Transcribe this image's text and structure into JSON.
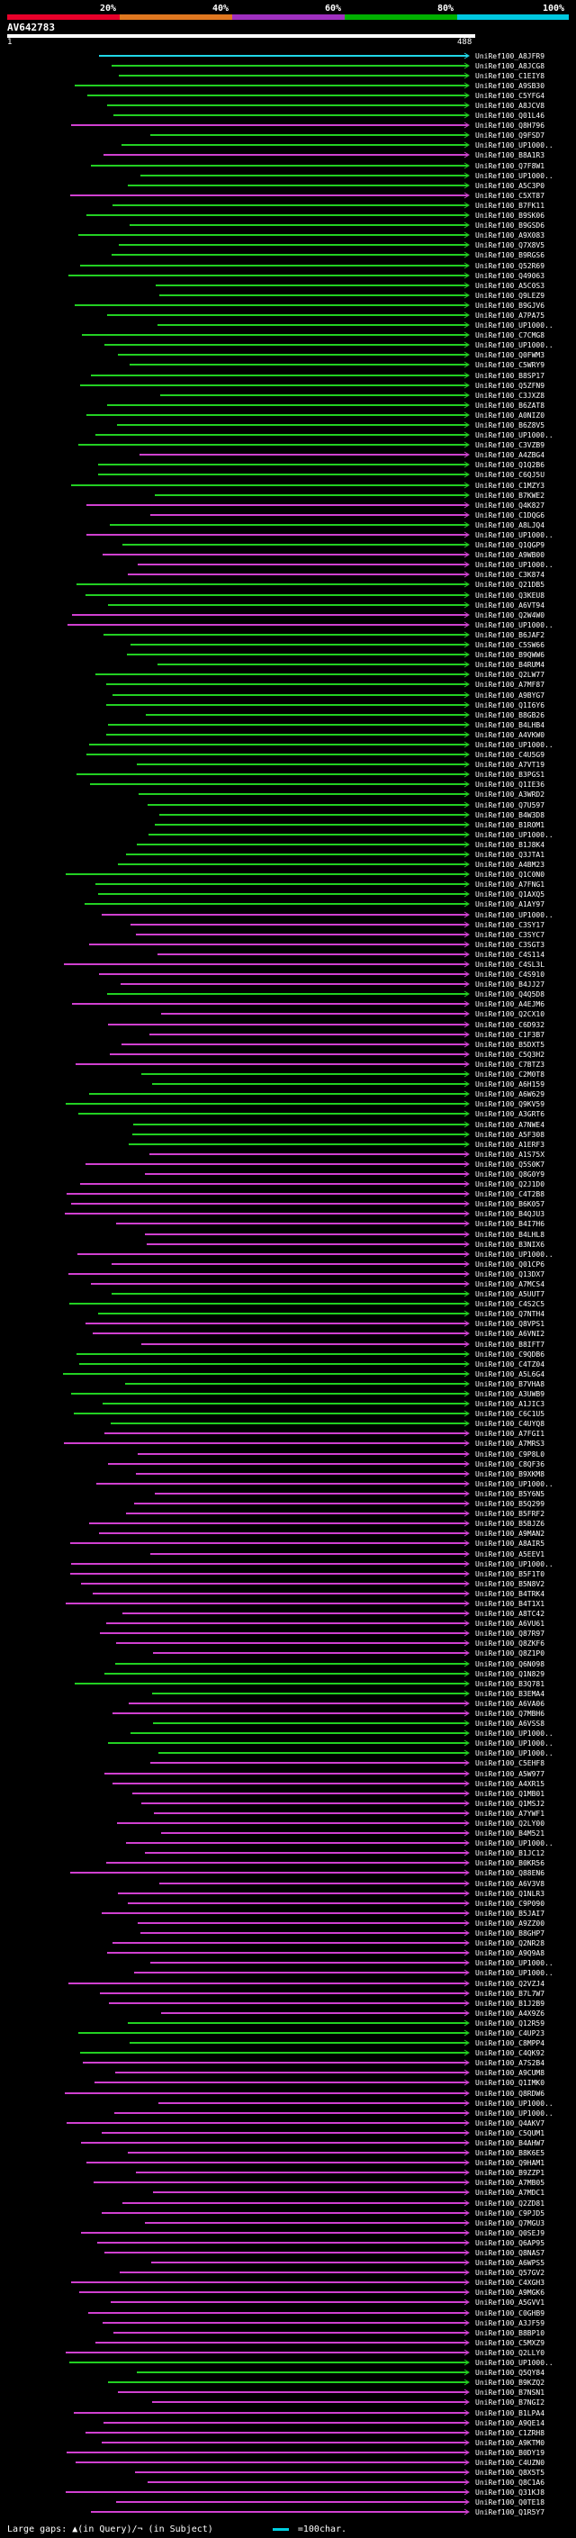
{
  "header": {
    "scale_labels": [
      "20%",
      "40%",
      "60%",
      "80%",
      "100%"
    ],
    "scale_colors": [
      "#e8002a",
      "#e07820",
      "#a030c0",
      "#00b000",
      "#00c8e0"
    ],
    "query_id": "AV642783",
    "start": "1",
    "end": "488"
  },
  "footer": {
    "large_gaps_label": "Large gaps:",
    "legend_text": "▲(in Query)/¬ (in Subject)",
    "scale_text": "=100char."
  },
  "hits": [
    {
      "id": "UniRef100_A8JFR9",
      "color": "cyan"
    },
    {
      "id": "UniRef100_A8JCG8",
      "color": "green"
    },
    {
      "id": "UniRef100_C1EIY8",
      "color": "green"
    },
    {
      "id": "UniRef100_A9SB30",
      "color": "green"
    },
    {
      "id": "UniRef100_C5YFG4",
      "color": "green"
    },
    {
      "id": "UniRef100_A8JCV8",
      "color": "green"
    },
    {
      "id": "UniRef100_Q01L46",
      "color": "green"
    },
    {
      "id": "UniRef100_Q8H796",
      "color": "magenta"
    },
    {
      "id": "UniRef100_Q9FSD7",
      "color": "green"
    },
    {
      "id": "UniRef100_UP1000..",
      "color": "green"
    },
    {
      "id": "UniRef100_B8A1R3",
      "color": "magenta"
    },
    {
      "id": "UniRef100_Q7F8W1",
      "color": "green"
    },
    {
      "id": "UniRef100_UP1000..",
      "color": "green"
    },
    {
      "id": "UniRef100_A5C3P0",
      "color": "green"
    },
    {
      "id": "UniRef100_C5XT87",
      "color": "magenta"
    },
    {
      "id": "UniRef100_B7FK11",
      "color": "green"
    },
    {
      "id": "UniRef100_B9SK06",
      "color": "green"
    },
    {
      "id": "UniRef100_B9GSD6",
      "color": "green"
    },
    {
      "id": "UniRef100_A9X083",
      "color": "green"
    },
    {
      "id": "UniRef100_Q7X8V5",
      "color": "green"
    },
    {
      "id": "UniRef100_B9RGS6",
      "color": "green"
    },
    {
      "id": "UniRef100_Q52R69",
      "color": "green"
    },
    {
      "id": "UniRef100_Q49063",
      "color": "green"
    },
    {
      "id": "UniRef100_A5C0S3",
      "color": "green"
    },
    {
      "id": "UniRef100_Q9LEZ9",
      "color": "green"
    },
    {
      "id": "UniRef100_B9GJV6",
      "color": "green"
    },
    {
      "id": "UniRef100_A7PA75",
      "color": "green"
    },
    {
      "id": "UniRef100_UP1000..",
      "color": "green"
    },
    {
      "id": "UniRef100_C7CMG8",
      "color": "green"
    },
    {
      "id": "UniRef100_UP1000..",
      "color": "green"
    },
    {
      "id": "UniRef100_Q0FWM3",
      "color": "green"
    },
    {
      "id": "UniRef100_C5WRY9",
      "color": "green"
    },
    {
      "id": "UniRef100_B8SP17",
      "color": "green"
    },
    {
      "id": "UniRef100_Q5ZFN9",
      "color": "green"
    },
    {
      "id": "UniRef100_C3JXZ8",
      "color": "green"
    },
    {
      "id": "UniRef100_B6ZAT8",
      "color": "green"
    },
    {
      "id": "UniRef100_A0NIZ0",
      "color": "green"
    },
    {
      "id": "UniRef100_B6Z8V5",
      "color": "green"
    },
    {
      "id": "UniRef100_UP1000..",
      "color": "green"
    },
    {
      "id": "UniRef100_C3VZB9",
      "color": "green"
    },
    {
      "id": "UniRef100_A4ZBG4",
      "color": "magenta"
    },
    {
      "id": "UniRef100_Q1Q2B6",
      "color": "green"
    },
    {
      "id": "UniRef100_C6QJ5U",
      "color": "green"
    },
    {
      "id": "UniRef100_C1MZY3",
      "color": "green"
    },
    {
      "id": "UniRef100_B7KWE2",
      "color": "green"
    },
    {
      "id": "UniRef100_Q4K827",
      "color": "magenta"
    },
    {
      "id": "UniRef100_C1DQG6",
      "color": "magenta"
    },
    {
      "id": "UniRef100_A8LJQ4",
      "color": "green"
    },
    {
      "id": "UniRef100_UP1000..",
      "color": "magenta"
    },
    {
      "id": "UniRef100_Q1QGP9",
      "color": "green"
    },
    {
      "id": "UniRef100_A9WB00",
      "color": "magenta"
    },
    {
      "id": "UniRef100_UP1000..",
      "color": "magenta"
    },
    {
      "id": "UniRef100_C3K874",
      "color": "magenta"
    },
    {
      "id": "UniRef100_Q21DB5",
      "color": "green"
    },
    {
      "id": "UniRef100_Q3KEU8",
      "color": "green"
    },
    {
      "id": "UniRef100_A6VT94",
      "color": "green"
    },
    {
      "id": "UniRef100_Q2W4W0",
      "color": "magenta"
    },
    {
      "id": "UniRef100_UP1000..",
      "color": "magenta"
    },
    {
      "id": "UniRef100_B6JAF2",
      "color": "green"
    },
    {
      "id": "UniRef100_C5SW66",
      "color": "green"
    },
    {
      "id": "UniRef100_B9QWW6",
      "color": "green"
    },
    {
      "id": "UniRef100_B4RUM4",
      "color": "green"
    },
    {
      "id": "UniRef100_Q2LW77",
      "color": "green"
    },
    {
      "id": "UniRef100_A7MF87",
      "color": "green"
    },
    {
      "id": "UniRef100_A9BYG7",
      "color": "green"
    },
    {
      "id": "UniRef100_Q1I6Y6",
      "color": "green"
    },
    {
      "id": "UniRef100_B8GB26",
      "color": "green"
    },
    {
      "id": "UniRef100_B4LHB4",
      "color": "green"
    },
    {
      "id": "UniRef100_A4VKW0",
      "color": "green"
    },
    {
      "id": "UniRef100_UP1000..",
      "color": "green"
    },
    {
      "id": "UniRef100_C4U5G9",
      "color": "green"
    },
    {
      "id": "UniRef100_A7VT19",
      "color": "green"
    },
    {
      "id": "UniRef100_B3PGS1",
      "color": "green"
    },
    {
      "id": "UniRef100_Q1IE36",
      "color": "green"
    },
    {
      "id": "UniRef100_A3WRD2",
      "color": "green"
    },
    {
      "id": "UniRef100_Q7U597",
      "color": "green"
    },
    {
      "id": "UniRef100_B4W3D8",
      "color": "green"
    },
    {
      "id": "UniRef100_B1ROM1",
      "color": "green"
    },
    {
      "id": "UniRef100_UP1000..",
      "color": "green"
    },
    {
      "id": "UniRef100_B1J8K4",
      "color": "green"
    },
    {
      "id": "UniRef100_Q3JTA1",
      "color": "green"
    },
    {
      "id": "UniRef100_A4BM23",
      "color": "green"
    },
    {
      "id": "UniRef100_Q1C0N0",
      "color": "green"
    },
    {
      "id": "UniRef100_A7FNG1",
      "color": "green"
    },
    {
      "id": "UniRef100_Q1AXQ5",
      "color": "green"
    },
    {
      "id": "UniRef100_A1AY97",
      "color": "green"
    },
    {
      "id": "UniRef100_UP1000..",
      "color": "magenta"
    },
    {
      "id": "UniRef100_C3SY17",
      "color": "magenta"
    },
    {
      "id": "UniRef100_C3SYC7",
      "color": "magenta"
    },
    {
      "id": "UniRef100_C3SGT3",
      "color": "magenta"
    },
    {
      "id": "UniRef100_C4S114",
      "color": "magenta"
    },
    {
      "id": "UniRef100_C4SL3L",
      "color": "magenta"
    },
    {
      "id": "UniRef100_C4S910",
      "color": "magenta"
    },
    {
      "id": "UniRef100_B4JJ27",
      "color": "magenta"
    },
    {
      "id": "UniRef100_Q4Q5D8",
      "color": "green"
    },
    {
      "id": "UniRef100_A4EJM6",
      "color": "magenta"
    },
    {
      "id": "UniRef100_Q2CX10",
      "color": "magenta"
    },
    {
      "id": "UniRef100_C6D932",
      "color": "magenta"
    },
    {
      "id": "UniRef100_C1F3B7",
      "color": "magenta"
    },
    {
      "id": "UniRef100_B5DXT5",
      "color": "magenta"
    },
    {
      "id": "UniRef100_C5Q3H2",
      "color": "magenta"
    },
    {
      "id": "UniRef100_C7BTZ3",
      "color": "magenta"
    },
    {
      "id": "UniRef100_C2M0T8",
      "color": "green"
    },
    {
      "id": "UniRef100_A6H159",
      "color": "green"
    },
    {
      "id": "UniRef100_A6W629",
      "color": "green"
    },
    {
      "id": "UniRef100_Q9KV59",
      "color": "green"
    },
    {
      "id": "UniRef100_A3GRT6",
      "color": "green"
    },
    {
      "id": "UniRef100_A7NWE4",
      "color": "green"
    },
    {
      "id": "UniRef100_A5F308",
      "color": "green"
    },
    {
      "id": "UniRef100_A1ERF3",
      "color": "green"
    },
    {
      "id": "UniRef100_A1S75X",
      "color": "magenta"
    },
    {
      "id": "UniRef100_Q5S0K7",
      "color": "magenta"
    },
    {
      "id": "UniRef100_Q8G0Y9",
      "color": "magenta"
    },
    {
      "id": "UniRef100_Q2J1D0",
      "color": "magenta"
    },
    {
      "id": "UniRef100_C4T2B8",
      "color": "magenta"
    },
    {
      "id": "UniRef100_B6K057",
      "color": "magenta"
    },
    {
      "id": "UniRef100_B4QJU3",
      "color": "magenta"
    },
    {
      "id": "UniRef100_B4I7H6",
      "color": "magenta"
    },
    {
      "id": "UniRef100_B4LHL8",
      "color": "magenta"
    },
    {
      "id": "UniRef100_B3NIX6",
      "color": "magenta"
    },
    {
      "id": "UniRef100_UP1000..",
      "color": "magenta"
    },
    {
      "id": "UniRef100_Q01CP6",
      "color": "magenta"
    },
    {
      "id": "UniRef100_Q13DX7",
      "color": "magenta"
    },
    {
      "id": "UniRef100_A7MCS4",
      "color": "magenta"
    },
    {
      "id": "UniRef100_A5UUT7",
      "color": "green"
    },
    {
      "id": "UniRef100_C4S2C5",
      "color": "green"
    },
    {
      "id": "UniRef100_Q7NTH4",
      "color": "green"
    },
    {
      "id": "UniRef100_Q8VPS1",
      "color": "magenta"
    },
    {
      "id": "UniRef100_A6VNI2",
      "color": "magenta"
    },
    {
      "id": "UniRef100_B8IFT7",
      "color": "magenta"
    },
    {
      "id": "UniRef100_C9QDB6",
      "color": "green"
    },
    {
      "id": "UniRef100_C4TZ04",
      "color": "green"
    },
    {
      "id": "UniRef100_A5L6G4",
      "color": "green"
    },
    {
      "id": "UniRef100_B7VHA8",
      "color": "green"
    },
    {
      "id": "UniRef100_A3UWB9",
      "color": "green"
    },
    {
      "id": "UniRef100_A1JIC3",
      "color": "green"
    },
    {
      "id": "UniRef100_C6C1U5",
      "color": "green"
    },
    {
      "id": "UniRef100_C4UYQ8",
      "color": "green"
    },
    {
      "id": "UniRef100_A7FGI1",
      "color": "magenta"
    },
    {
      "id": "UniRef100_A7MRS3",
      "color": "magenta"
    },
    {
      "id": "UniRef100_C9P8L0",
      "color": "magenta"
    },
    {
      "id": "UniRef100_C8QF36",
      "color": "magenta"
    },
    {
      "id": "UniRef100_B9XKM8",
      "color": "magenta"
    },
    {
      "id": "UniRef100_UP1000..",
      "color": "magenta"
    },
    {
      "id": "UniRef100_B5Y6N5",
      "color": "magenta"
    },
    {
      "id": "UniRef100_B5Q299",
      "color": "magenta"
    },
    {
      "id": "UniRef100_B5FRF2",
      "color": "magenta"
    },
    {
      "id": "UniRef100_B5BJZ6",
      "color": "magenta"
    },
    {
      "id": "UniRef100_A9MAN2",
      "color": "magenta"
    },
    {
      "id": "UniRef100_A8AIR5",
      "color": "magenta"
    },
    {
      "id": "UniRef100_A5EEV1",
      "color": "magenta"
    },
    {
      "id": "UniRef100_UP1000..",
      "color": "magenta"
    },
    {
      "id": "UniRef100_B5F1T0",
      "color": "magenta"
    },
    {
      "id": "UniRef100_B5N8V2",
      "color": "magenta"
    },
    {
      "id": "UniRef100_B4TRK4",
      "color": "magenta"
    },
    {
      "id": "UniRef100_B4T1X1",
      "color": "magenta"
    },
    {
      "id": "UniRef100_A8TC42",
      "color": "magenta"
    },
    {
      "id": "UniRef100_A6VU61",
      "color": "magenta"
    },
    {
      "id": "UniRef100_Q87R97",
      "color": "magenta"
    },
    {
      "id": "UniRef100_Q8ZKF6",
      "color": "magenta"
    },
    {
      "id": "UniRef100_Q8Z1P0",
      "color": "magenta"
    },
    {
      "id": "UniRef100_Q6N098",
      "color": "green"
    },
    {
      "id": "UniRef100_Q1N829",
      "color": "green"
    },
    {
      "id": "UniRef100_B3Q781",
      "color": "green"
    },
    {
      "id": "UniRef100_B3EMA4",
      "color": "green"
    },
    {
      "id": "UniRef100_A6VA06",
      "color": "magenta"
    },
    {
      "id": "UniRef100_Q7MBH6",
      "color": "magenta"
    },
    {
      "id": "UniRef100_A6VSS8",
      "color": "green"
    },
    {
      "id": "UniRef100_UP1000..",
      "color": "green"
    },
    {
      "id": "UniRef100_UP1000..",
      "color": "green"
    },
    {
      "id": "UniRef100_UP1000..",
      "color": "green"
    },
    {
      "id": "UniRef100_C5EHF8",
      "color": "magenta"
    },
    {
      "id": "UniRef100_A5W977",
      "color": "magenta"
    },
    {
      "id": "UniRef100_A4XR15",
      "color": "magenta"
    },
    {
      "id": "UniRef100_Q1MB01",
      "color": "magenta"
    },
    {
      "id": "UniRef100_Q1MSJ2",
      "color": "magenta"
    },
    {
      "id": "UniRef100_A7YWF1",
      "color": "magenta"
    },
    {
      "id": "UniRef100_Q2LY00",
      "color": "magenta"
    },
    {
      "id": "UniRef100_B4M521",
      "color": "magenta"
    },
    {
      "id": "UniRef100_UP1000..",
      "color": "magenta"
    },
    {
      "id": "UniRef100_B1JC12",
      "color": "magenta"
    },
    {
      "id": "UniRef100_B0KR56",
      "color": "magenta"
    },
    {
      "id": "UniRef100_Q88EN6",
      "color": "magenta"
    },
    {
      "id": "UniRef100_A6V3V8",
      "color": "magenta"
    },
    {
      "id": "UniRef100_Q1NLR3",
      "color": "magenta"
    },
    {
      "id": "UniRef100_C9P090",
      "color": "magenta"
    },
    {
      "id": "UniRef100_B5JAI7",
      "color": "magenta"
    },
    {
      "id": "UniRef100_A9ZZ00",
      "color": "magenta"
    },
    {
      "id": "UniRef100_B8GHP7",
      "color": "magenta"
    },
    {
      "id": "UniRef100_Q2NR28",
      "color": "magenta"
    },
    {
      "id": "UniRef100_A9Q9A8",
      "color": "magenta"
    },
    {
      "id": "UniRef100_UP1000..",
      "color": "magenta"
    },
    {
      "id": "UniRef100_UP1000..",
      "color": "magenta"
    },
    {
      "id": "UniRef100_Q2VZJ4",
      "color": "magenta"
    },
    {
      "id": "UniRef100_B7L7W7",
      "color": "magenta"
    },
    {
      "id": "UniRef100_B1J2B9",
      "color": "magenta"
    },
    {
      "id": "UniRef100_A4X9Z6",
      "color": "magenta"
    },
    {
      "id": "UniRef100_Q12R59",
      "color": "green"
    },
    {
      "id": "UniRef100_C4UP23",
      "color": "green"
    },
    {
      "id": "UniRef100_C8MPP4",
      "color": "green"
    },
    {
      "id": "UniRef100_C4QK92",
      "color": "green"
    },
    {
      "id": "UniRef100_A7S2B4",
      "color": "magenta"
    },
    {
      "id": "UniRef100_A9CUM8",
      "color": "magenta"
    },
    {
      "id": "UniRef100_Q1IMK0",
      "color": "magenta"
    },
    {
      "id": "UniRef100_Q8RDW6",
      "color": "magenta"
    },
    {
      "id": "UniRef100_UP1000..",
      "color": "magenta"
    },
    {
      "id": "UniRef100_UP1000..",
      "color": "magenta"
    },
    {
      "id": "UniRef100_Q4AKV7",
      "color": "magenta"
    },
    {
      "id": "UniRef100_C5QUM1",
      "color": "magenta"
    },
    {
      "id": "UniRef100_B4AHW7",
      "color": "magenta"
    },
    {
      "id": "UniRef100_B8K6E5",
      "color": "magenta"
    },
    {
      "id": "UniRef100_Q9HAM1",
      "color": "magenta"
    },
    {
      "id": "UniRef100_B9ZZP1",
      "color": "magenta"
    },
    {
      "id": "UniRef100_A7MB05",
      "color": "magenta"
    },
    {
      "id": "UniRef100_A7MDC1",
      "color": "magenta"
    },
    {
      "id": "UniRef100_Q2ZD81",
      "color": "magenta"
    },
    {
      "id": "UniRef100_C9PJD5",
      "color": "magenta"
    },
    {
      "id": "UniRef100_Q7MGU3",
      "color": "magenta"
    },
    {
      "id": "UniRef100_Q0SEJ9",
      "color": "magenta"
    },
    {
      "id": "UniRef100_Q6AP95",
      "color": "magenta"
    },
    {
      "id": "UniRef100_Q8NAS7",
      "color": "magenta"
    },
    {
      "id": "UniRef100_A6WPS5",
      "color": "magenta"
    },
    {
      "id": "UniRef100_Q57GV2",
      "color": "magenta"
    },
    {
      "id": "UniRef100_C4XGH3",
      "color": "magenta"
    },
    {
      "id": "UniRef100_A9MGK6",
      "color": "magenta"
    },
    {
      "id": "UniRef100_A5GVV1",
      "color": "magenta"
    },
    {
      "id": "UniRef100_C0GHB9",
      "color": "magenta"
    },
    {
      "id": "UniRef100_A3JF59",
      "color": "magenta"
    },
    {
      "id": "UniRef100_B8BP10",
      "color": "magenta"
    },
    {
      "id": "UniRef100_C5MXZ9",
      "color": "magenta"
    },
    {
      "id": "UniRef100_Q2LLY0",
      "color": "magenta"
    },
    {
      "id": "UniRef100_UP1000..",
      "color": "green"
    },
    {
      "id": "UniRef100_Q5QY84",
      "color": "green"
    },
    {
      "id": "UniRef100_B9KZQ2",
      "color": "green"
    },
    {
      "id": "UniRef100_B7NSN1",
      "color": "magenta"
    },
    {
      "id": "UniRef100_B7NGI2",
      "color": "magenta"
    },
    {
      "id": "UniRef100_B1LPA4",
      "color": "magenta"
    },
    {
      "id": "UniRef100_A9QE14",
      "color": "magenta"
    },
    {
      "id": "UniRef100_C1ZRH8",
      "color": "magenta"
    },
    {
      "id": "UniRef100_A9KTM0",
      "color": "magenta"
    },
    {
      "id": "UniRef100_B0DY19",
      "color": "magenta"
    },
    {
      "id": "UniRef100_C4UZN0",
      "color": "magenta"
    },
    {
      "id": "UniRef100_Q8X5T5",
      "color": "magenta"
    },
    {
      "id": "UniRef100_Q8C1A6",
      "color": "magenta"
    },
    {
      "id": "UniRef100_Q31KJ8",
      "color": "magenta"
    },
    {
      "id": "UniRef100_Q0TE18",
      "color": "magenta"
    },
    {
      "id": "UniRef100_Q1R5Y7",
      "color": "magenta"
    }
  ]
}
